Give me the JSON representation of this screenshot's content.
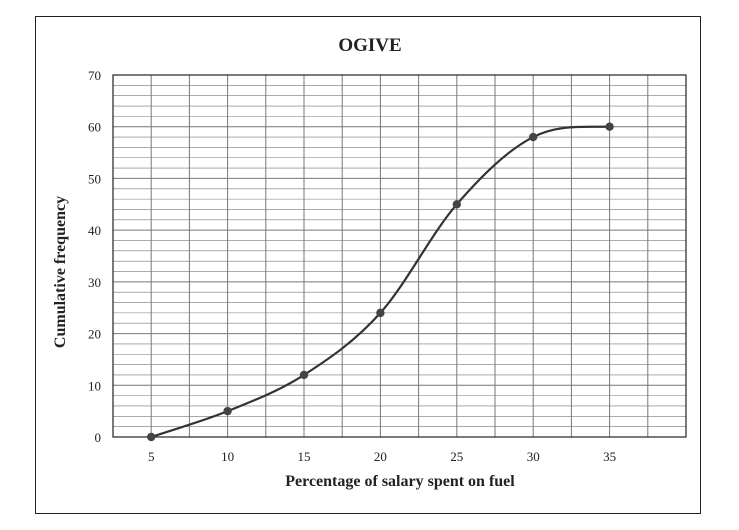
{
  "chart_data": {
    "type": "line",
    "title": "OGIVE",
    "xlabel": "Percentage of salary spent on fuel",
    "ylabel": "Cumulative frequency",
    "x_ticks": [
      "5",
      "10",
      "15",
      "20",
      "25",
      "30",
      "35"
    ],
    "y_ticks": [
      "0",
      "10",
      "20",
      "30",
      "40",
      "50",
      "60",
      "70"
    ],
    "xlim": [
      2.5,
      40
    ],
    "ylim": [
      0,
      70
    ],
    "grid": true,
    "series": [
      {
        "x": [
          5,
          10,
          15,
          20,
          25,
          30,
          35
        ],
        "y": [
          0,
          5,
          12,
          24,
          45,
          58,
          60
        ]
      }
    ],
    "colors": {
      "line": "#333333",
      "marker": "#444444",
      "grid": "#777777",
      "frame": "#222222"
    }
  }
}
